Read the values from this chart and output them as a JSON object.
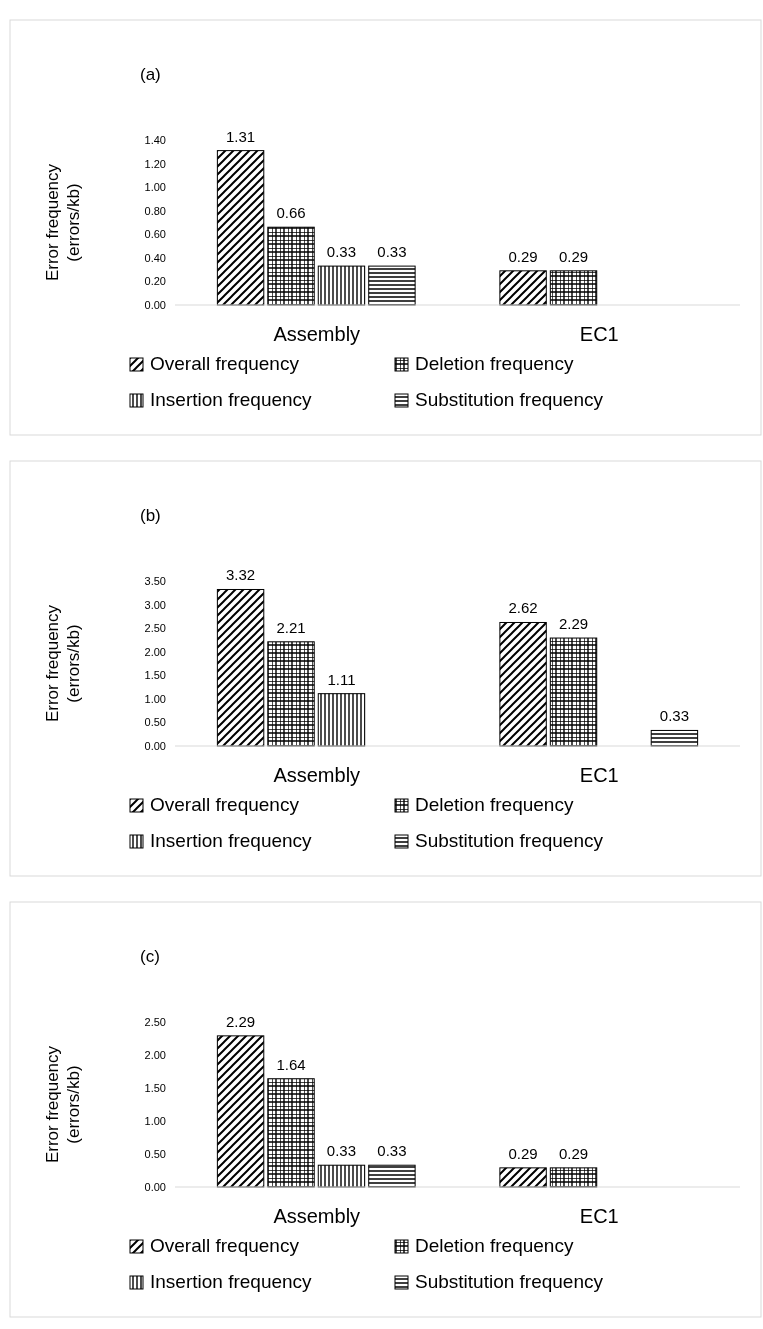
{
  "chart_data": [
    {
      "type": "bar",
      "title": "(a)",
      "ylabel": "Error frequency (errors/kb)",
      "categories": [
        "Assembly",
        "EC1"
      ],
      "series": [
        {
          "name": "Overall frequency",
          "color": "#000000",
          "values": [
            1.31,
            0.29
          ]
        },
        {
          "name": "Deletion frequency",
          "color": "#000000",
          "values": [
            0.66,
            0.29
          ]
        },
        {
          "name": "Insertion frequency",
          "color": "#000000",
          "values": [
            0.33,
            null
          ]
        },
        {
          "name": "Substitution frequency",
          "color": "#000000",
          "values": [
            0.33,
            null
          ]
        }
      ],
      "ylim": [
        0,
        1.4
      ],
      "yticks": [
        {
          "value": 0,
          "label": "0.00"
        },
        {
          "value": 0.2,
          "label": "0.20"
        },
        {
          "value": 0.4,
          "label": "0.40"
        },
        {
          "value": 0.6,
          "label": "0.60"
        },
        {
          "value": 0.8,
          "label": "0.80"
        },
        {
          "value": 1,
          "label": "1.00"
        },
        {
          "value": 1.2,
          "label": "1.20"
        },
        {
          "value": 1.4,
          "label": "1.40"
        }
      ],
      "data_labels": true,
      "legend": "bottom",
      "grid": false
    },
    {
      "type": "bar",
      "title": "(b)",
      "ylabel": "Error frequency (errors/kb)",
      "categories": [
        "Assembly",
        "EC1"
      ],
      "series": [
        {
          "name": "Overall frequency",
          "color": "#000000",
          "values": [
            3.32,
            2.62
          ]
        },
        {
          "name": "Deletion frequency",
          "color": "#000000",
          "values": [
            2.21,
            2.29
          ]
        },
        {
          "name": "Insertion frequency",
          "color": "#000000",
          "values": [
            1.11,
            null
          ]
        },
        {
          "name": "Substitution frequency",
          "color": "#000000",
          "values": [
            null,
            0.33
          ]
        }
      ],
      "ylim": [
        0,
        3.5
      ],
      "yticks": [
        {
          "value": 0,
          "label": "0.00"
        },
        {
          "value": 0.5,
          "label": "0.50"
        },
        {
          "value": 1,
          "label": "1.00"
        },
        {
          "value": 1.5,
          "label": "1.50"
        },
        {
          "value": 2,
          "label": "2.00"
        },
        {
          "value": 2.5,
          "label": "2.50"
        },
        {
          "value": 3,
          "label": "3.00"
        },
        {
          "value": 3.5,
          "label": "3.50"
        }
      ],
      "data_labels": true,
      "legend": "bottom",
      "grid": false
    },
    {
      "type": "bar",
      "title": "(c)",
      "ylabel": "Error frequency (errors/kb)",
      "categories": [
        "Assembly",
        "EC1"
      ],
      "series": [
        {
          "name": "Overall frequency",
          "color": "#000000",
          "values": [
            2.29,
            0.29
          ]
        },
        {
          "name": "Deletion frequency",
          "color": "#000000",
          "values": [
            1.64,
            0.29
          ]
        },
        {
          "name": "Insertion frequency",
          "color": "#000000",
          "values": [
            0.33,
            null
          ]
        },
        {
          "name": "Substitution frequency",
          "color": "#000000",
          "values": [
            0.33,
            null
          ]
        }
      ],
      "ylim": [
        0,
        2.5
      ],
      "yticks": [
        {
          "value": 0,
          "label": "0.00"
        },
        {
          "value": 0.5,
          "label": "0.50"
        },
        {
          "value": 1,
          "label": "1.00"
        },
        {
          "value": 1.5,
          "label": "1.50"
        },
        {
          "value": 2,
          "label": "2.00"
        },
        {
          "value": 2.5,
          "label": "2.50"
        }
      ],
      "data_labels": true,
      "legend": "bottom",
      "grid": false
    }
  ]
}
